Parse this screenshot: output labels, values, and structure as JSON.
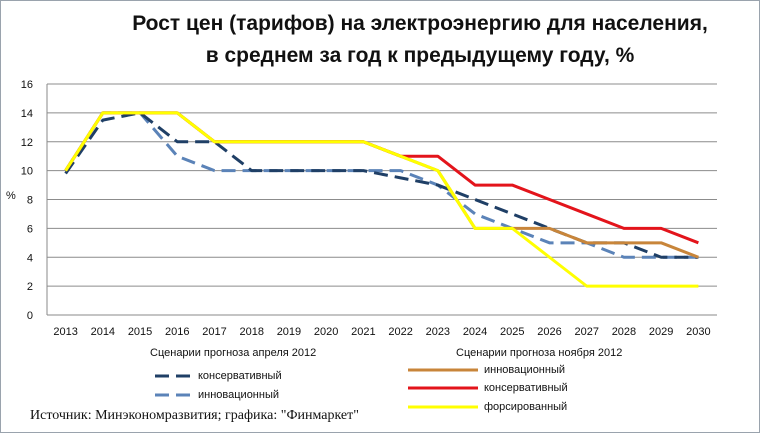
{
  "chart_data": {
    "type": "line",
    "title_line1": "Рост цен (тарифов) на электроэнергию для населения,",
    "title_line2": "в среднем за год к предыдущему году, %",
    "ylabel": "%",
    "ylim": [
      0,
      16
    ],
    "yticks": [
      0,
      2,
      4,
      6,
      8,
      10,
      12,
      14,
      16
    ],
    "x": [
      "2013",
      "2014",
      "2015",
      "2016",
      "2017",
      "2018",
      "2019",
      "2020",
      "2021",
      "2022",
      "2023",
      "2024",
      "2025",
      "2026",
      "2027",
      "2028",
      "2029",
      "2030"
    ],
    "grid": true,
    "legend_groups": [
      {
        "heading": "Сценарии прогноза апреля 2012",
        "entries": [
          "консервативный",
          "инновационный"
        ]
      },
      {
        "heading": "Сценарии прогноза ноября 2012",
        "entries": [
          "инновационный",
          "консервативный",
          "форсированный"
        ]
      }
    ],
    "series": [
      {
        "name": "консервативный",
        "group": "Сценарии прогноза апреля 2012",
        "color": "#1f3f66",
        "dash": "long",
        "values": [
          9.8,
          13.5,
          14,
          12,
          12,
          10,
          10,
          10,
          10,
          9.5,
          9,
          8,
          7,
          6,
          5,
          5,
          4,
          4
        ]
      },
      {
        "name": "инновационный",
        "group": "Сценарии прогноза апреля 2012",
        "color": "#5b83b8",
        "dash": "long",
        "values": [
          10,
          14,
          14,
          11,
          10,
          10,
          10,
          10,
          10,
          10,
          9,
          7,
          6,
          5,
          5,
          4,
          4,
          4
        ]
      },
      {
        "name": "инновационный",
        "group": "Сценарии прогноза ноября 2012",
        "color": "#c8853a",
        "dash": "solid",
        "values": [
          10,
          14,
          14,
          14,
          12,
          12,
          12,
          12,
          12,
          11,
          10,
          6,
          6,
          6,
          5,
          5,
          5,
          4
        ]
      },
      {
        "name": "консервативный",
        "group": "Сценарии прогноза ноября 2012",
        "color": "#e3141b",
        "dash": "solid",
        "values": [
          10,
          14,
          14,
          14,
          12,
          12,
          12,
          12,
          12,
          11,
          11,
          9,
          9,
          8,
          7,
          6,
          6,
          5
        ]
      },
      {
        "name": "форсированный",
        "group": "Сценарии прогноза ноября 2012",
        "color": "#ffff00",
        "dash": "solid",
        "values": [
          10,
          14,
          14,
          14,
          12,
          12,
          12,
          12,
          12,
          11,
          10,
          6,
          6,
          4,
          2,
          2,
          2,
          2
        ]
      }
    ]
  },
  "source": "Источник: Минэкономразвития; графика: \"Финмаркет\""
}
